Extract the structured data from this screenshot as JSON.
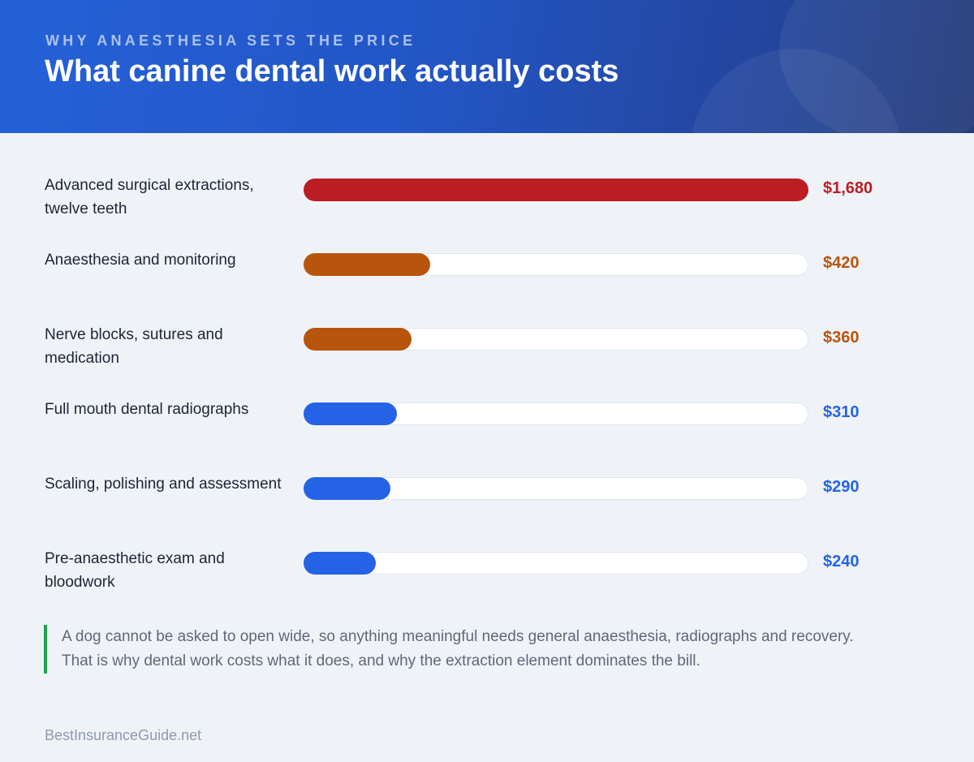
{
  "header": {
    "kicker": "WHY ANAESTHESIA SETS THE PRICE",
    "title": "What canine dental work actually costs"
  },
  "chart_data": {
    "type": "bar",
    "orientation": "horizontal",
    "categories": [
      "Advanced surgical extractions, twelve teeth",
      "Anaesthesia and monitoring",
      "Nerve blocks, sutures and medication",
      "Full mouth dental radiographs",
      "Scaling, polishing and assessment",
      "Pre-anaesthetic exam and bloodwork"
    ],
    "values": [
      1680,
      420,
      360,
      310,
      290,
      240
    ],
    "value_labels": [
      "$1,680",
      "$420",
      "$360",
      "$310",
      "$290",
      "$240"
    ],
    "colors": [
      "#bb1d22",
      "#b8540b",
      "#b8540b",
      "#2563e6",
      "#2563e6",
      "#2563e6"
    ],
    "xlim": [
      0,
      1680
    ]
  },
  "note": {
    "text": "A dog cannot be asked to open wide, so anything meaningful needs general anaesthesia, radiographs and recovery. That is why dental work costs what it does, and why the extraction element dominates the bill."
  },
  "footer": {
    "source": "BestInsuranceGuide.net"
  }
}
